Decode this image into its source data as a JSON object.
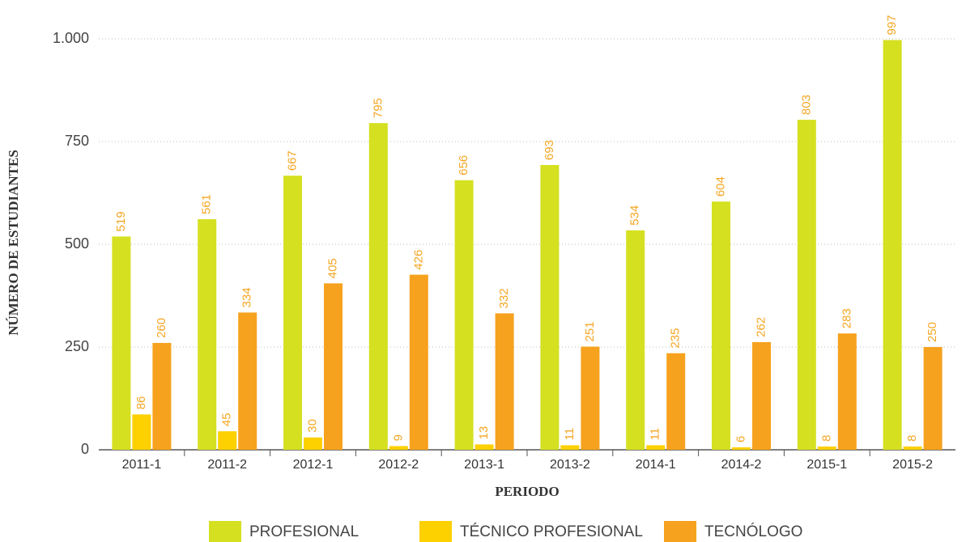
{
  "chart_data": {
    "type": "bar",
    "y_label": "NÚMERO DE ESTUDIANTES",
    "x_label": "PERIODO",
    "categories": [
      "2011-1",
      "2011-2",
      "2012-1",
      "2012-2",
      "2013-1",
      "2013-2",
      "2014-1",
      "2014-2",
      "2015-1",
      "2015-2"
    ],
    "series": [
      {
        "name": "PROFESIONAL",
        "color": "#d5e021",
        "values": [
          519,
          561,
          667,
          795,
          656,
          693,
          534,
          604,
          803,
          997
        ]
      },
      {
        "name": "TÉCNICO PROFESIONAL",
        "color": "#fdd000",
        "values": [
          86,
          45,
          30,
          9,
          13,
          11,
          11,
          6,
          8,
          8
        ]
      },
      {
        "name": "TECNÓLOGO",
        "color": "#f6a21e",
        "values": [
          260,
          334,
          405,
          426,
          332,
          251,
          235,
          262,
          283,
          250
        ]
      }
    ],
    "ylim": [
      0,
      1000
    ],
    "yticks": [
      0,
      250,
      500,
      750,
      {
        "value": 1000,
        "label": "1.000"
      }
    ],
    "grid": true,
    "legend": "bottom",
    "value_label_color": "#f5a623"
  }
}
